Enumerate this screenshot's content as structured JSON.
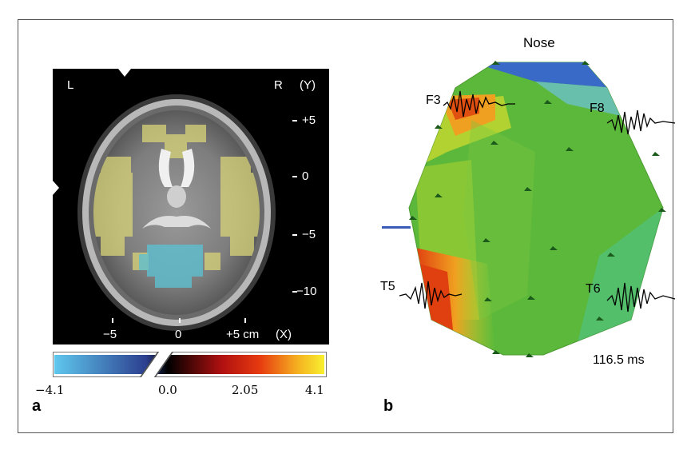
{
  "panel_a": {
    "letter": "a",
    "left_label": "L",
    "right_label": "R",
    "y_axis_label": "(Y)",
    "y_ticks": [
      "+5",
      "0",
      "−5",
      "−10"
    ],
    "x_ticks": [
      "−5",
      "0",
      "+5 cm"
    ],
    "x_axis_label": "(X)",
    "colorbar": {
      "labels": [
        "−4.1",
        "0.0",
        "2.05",
        "4.1"
      ],
      "colors": [
        "#5fc8ee",
        "#2c3f8f",
        "#000000",
        "#b01010",
        "#e63a10",
        "#f5b020",
        "#f8f030"
      ]
    }
  },
  "panel_b": {
    "letter": "b",
    "top_label": "Nose",
    "electrodes": [
      "F3",
      "F8",
      "T5",
      "T6"
    ],
    "time_label": "116.5 ms",
    "colors": {
      "neutral": "#5cb83a",
      "positive": "#e8a020",
      "negative": "#2c5fc0"
    }
  }
}
